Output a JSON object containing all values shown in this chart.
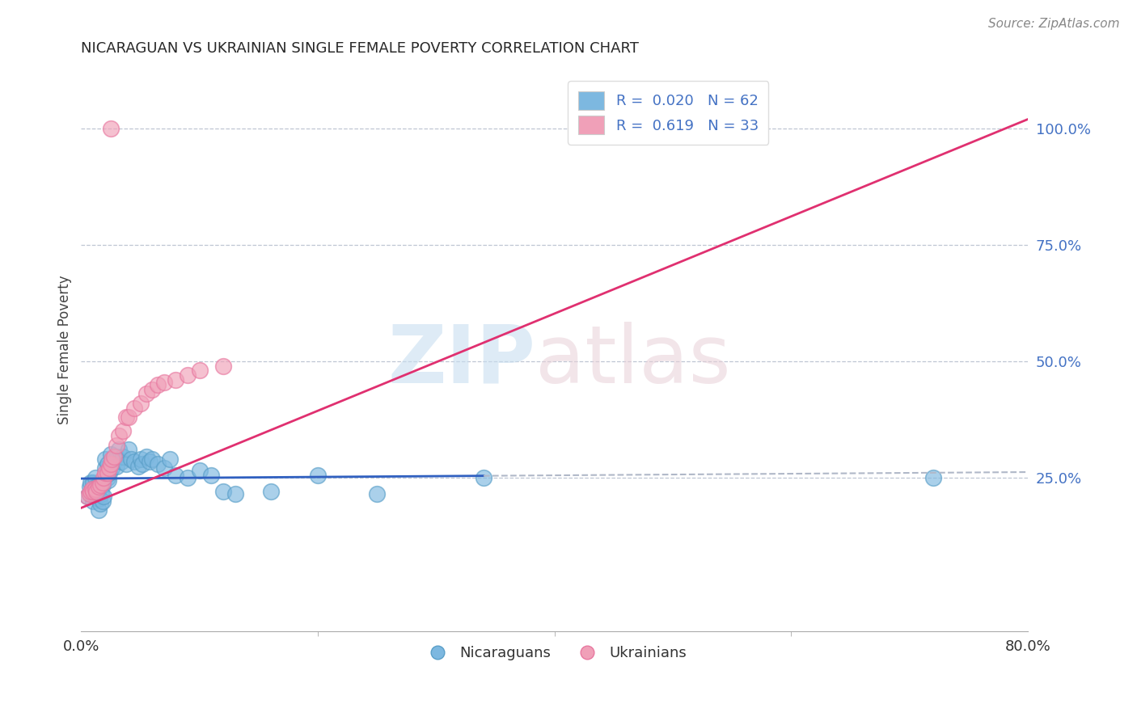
{
  "title": "NICARAGUAN VS UKRAINIAN SINGLE FEMALE POVERTY CORRELATION CHART",
  "source": "Source: ZipAtlas.com",
  "ylabel": "Single Female Poverty",
  "xlim": [
    0.0,
    0.8
  ],
  "ylim": [
    -0.08,
    1.13
  ],
  "watermark_zip": "ZIP",
  "watermark_atlas": "atlas",
  "legend_line1": "R =  0.020   N = 62",
  "legend_line2": "R =  0.619   N = 33",
  "legend_bottom_blue": "Nicaraguans",
  "legend_bottom_pink": "Ukrainians",
  "blue_color": "#7db8e0",
  "pink_color": "#f0a0b8",
  "blue_edge": "#5a9fc8",
  "pink_edge": "#e878a0",
  "blue_line_color": "#3060c0",
  "pink_line_color": "#e03070",
  "dashed_color": "#b0b8c8",
  "title_color": "#282828",
  "right_axis_color": "#4472c4",
  "blue_R": 0.02,
  "pink_R": 0.619,
  "blue_x": [
    0.005,
    0.007,
    0.008,
    0.009,
    0.01,
    0.01,
    0.01,
    0.011,
    0.012,
    0.012,
    0.013,
    0.013,
    0.014,
    0.015,
    0.015,
    0.015,
    0.016,
    0.016,
    0.017,
    0.018,
    0.018,
    0.019,
    0.02,
    0.02,
    0.021,
    0.022,
    0.022,
    0.023,
    0.023,
    0.024,
    0.025,
    0.026,
    0.028,
    0.03,
    0.03,
    0.032,
    0.034,
    0.035,
    0.038,
    0.04,
    0.042,
    0.045,
    0.048,
    0.05,
    0.052,
    0.055,
    0.058,
    0.06,
    0.065,
    0.07,
    0.075,
    0.08,
    0.09,
    0.1,
    0.11,
    0.12,
    0.13,
    0.16,
    0.2,
    0.25,
    0.34,
    0.72
  ],
  "blue_y": [
    0.21,
    0.23,
    0.24,
    0.215,
    0.2,
    0.22,
    0.24,
    0.22,
    0.21,
    0.25,
    0.215,
    0.23,
    0.21,
    0.18,
    0.205,
    0.225,
    0.195,
    0.23,
    0.215,
    0.2,
    0.235,
    0.21,
    0.27,
    0.29,
    0.255,
    0.25,
    0.28,
    0.265,
    0.245,
    0.26,
    0.3,
    0.27,
    0.285,
    0.295,
    0.275,
    0.31,
    0.285,
    0.295,
    0.28,
    0.31,
    0.29,
    0.285,
    0.275,
    0.29,
    0.28,
    0.295,
    0.285,
    0.29,
    0.28,
    0.27,
    0.29,
    0.255,
    0.25,
    0.265,
    0.255,
    0.22,
    0.215,
    0.22,
    0.255,
    0.215,
    0.25,
    0.25
  ],
  "pink_x": [
    0.005,
    0.007,
    0.008,
    0.009,
    0.01,
    0.012,
    0.013,
    0.015,
    0.016,
    0.018,
    0.019,
    0.02,
    0.022,
    0.024,
    0.025,
    0.026,
    0.028,
    0.03,
    0.032,
    0.035,
    0.038,
    0.04,
    0.045,
    0.05,
    0.055,
    0.06,
    0.065,
    0.07,
    0.08,
    0.09,
    0.1,
    0.12,
    0.025
  ],
  "pink_y": [
    0.21,
    0.215,
    0.22,
    0.225,
    0.22,
    0.225,
    0.22,
    0.23,
    0.235,
    0.24,
    0.25,
    0.26,
    0.26,
    0.27,
    0.28,
    0.29,
    0.295,
    0.32,
    0.34,
    0.35,
    0.38,
    0.38,
    0.4,
    0.41,
    0.43,
    0.44,
    0.45,
    0.455,
    0.46,
    0.47,
    0.48,
    0.49,
    1.0
  ],
  "pink_line_x0": 0.0,
  "pink_line_y0": 0.185,
  "pink_line_x1": 0.8,
  "pink_line_y1": 1.02,
  "blue_line_x0": 0.0,
  "blue_line_y0": 0.248,
  "blue_line_x1": 0.8,
  "blue_line_y1": 0.262
}
